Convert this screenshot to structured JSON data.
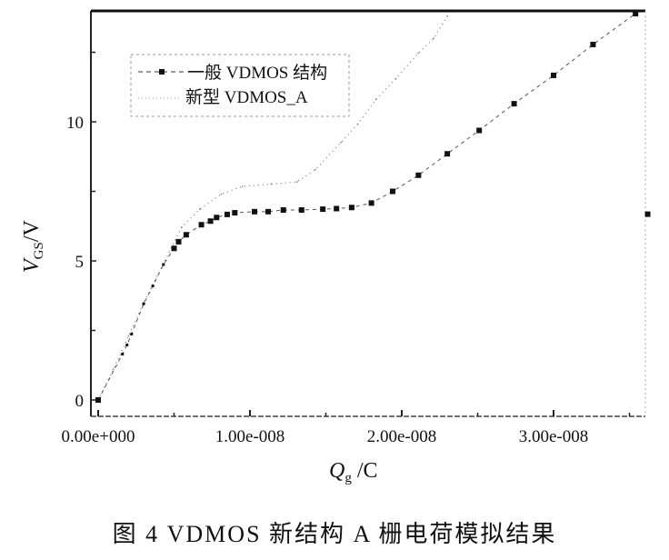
{
  "chart_data": {
    "type": "scatter",
    "title": "",
    "caption": "图 4   VDMOS 新结构 A 栅电荷模拟结果",
    "xlabel": {
      "main": "Q",
      "sub": "g",
      "unit": " /C"
    },
    "ylabel": {
      "main": "V",
      "sub": "GS",
      "unit": "/V"
    },
    "xlim": [
      -5e-10,
      3.65e-08
    ],
    "ylim": [
      -0.6,
      14.0
    ],
    "x_ticks": [
      0,
      1e-08,
      2e-08,
      3e-08
    ],
    "x_tick_labels": [
      "0.00e+000",
      "1.00e-008",
      "2.00e-008",
      "3.00e-008"
    ],
    "y_ticks": [
      0,
      5,
      10
    ],
    "y_tick_labels": [
      "0",
      "5",
      "10"
    ],
    "grid": false,
    "legend_position": "top-left",
    "series": [
      {
        "name": "一般 VDMOS 结构",
        "style": "dashed line with square markers",
        "color": "#111111",
        "x": [
          0,
          1.6e-09,
          1.9e-09,
          2.2e-09,
          3e-09,
          3.6e-09,
          4.3e-09,
          5e-09,
          5.3e-09,
          5.8e-09,
          6.8e-09,
          7.4e-09,
          7.8e-09,
          8.5e-09,
          9e-09,
          1.03e-08,
          1.12e-08,
          1.22e-08,
          1.34e-08,
          1.48e-08,
          1.57e-08,
          1.67e-08,
          1.8e-08,
          1.94e-08,
          2.11e-08,
          2.3e-08,
          2.51e-08,
          2.74e-08,
          3e-08,
          3.26e-08,
          3.54e-08,
          3.62e-08
        ],
        "y": [
          0,
          1.65,
          1.98,
          2.37,
          3.46,
          4.1,
          4.87,
          5.45,
          5.69,
          5.94,
          6.3,
          6.43,
          6.56,
          6.67,
          6.73,
          6.77,
          6.77,
          6.83,
          6.83,
          6.86,
          6.88,
          6.92,
          7.08,
          7.5,
          8.08,
          8.85,
          9.69,
          10.65,
          11.67,
          12.78,
          13.89,
          6.68
        ]
      },
      {
        "name": "新型 VDMOS_A",
        "style": "dotted line",
        "color": "#777777",
        "x": [
          0,
          1e-09,
          2e-09,
          3e-09,
          4.3e-09,
          5.5e-09,
          6.7e-09,
          8.1e-09,
          9.5e-09,
          1.14e-08,
          1.31e-08,
          1.43e-08,
          1.6e-08,
          1.71e-08,
          1.83e-08,
          1.96e-08,
          2.11e-08,
          2.21e-08,
          2.3e-08
        ],
        "y": [
          0,
          1.1,
          2.3,
          3.5,
          4.9,
          6.21,
          6.86,
          7.4,
          7.68,
          7.76,
          7.84,
          8.28,
          9.26,
          9.92,
          10.8,
          11.55,
          12.47,
          13.0,
          13.8
        ]
      }
    ]
  }
}
